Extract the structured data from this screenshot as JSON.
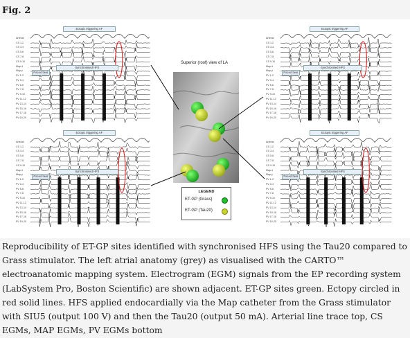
{
  "figure_label": "Fig. 2",
  "panels": {
    "trigger_label": "Ectopic triggering AF",
    "hfs_label": "Synchronised HFS",
    "paced_label": "Paced beat",
    "row_labels": [
      "Arterial",
      "CS 1-2",
      "CS 3-4",
      "CS 5-6",
      "CS 7-8",
      "CS 9-10",
      "Map d",
      "Map p",
      "PV 1-2",
      "PV 3-4",
      "PV 5-6",
      "PV 7-8",
      "PV 9-10",
      "PV 11-12",
      "PV 13-14",
      "PV 15-16",
      "PV 17-18",
      "PV 19-20"
    ]
  },
  "center": {
    "title": "Superior (roof) view of LA",
    "legend_title": "LEGEND",
    "legend_items": [
      {
        "label": "ET-GP (Grass)",
        "color": "#22c02a"
      },
      {
        "label": "ET-GP (Tau20)",
        "color": "#c8d62a"
      }
    ]
  },
  "caption": "Reproducibility of ET-GP sites identified with synchronised HFS using the Tau20 compared to Grass stimulator. The left atrial anatomy (grey) as visualised with the CARTO™ electroanatomic mapping system. Electrogram (EGM) signals from the EP recording system (LabSystem Pro, Boston Scientific) are shown adjacent. ET-GP sites green. Ectopy circled in red solid lines. HFS applied endocardially via the Map catheter from the Grass stimulator with SIU5 (output 100 V) and then the Tau20 (output 50 mA). Arterial line trace top, CS EGMs, MAP EGMs, PV EGMs bottom"
}
